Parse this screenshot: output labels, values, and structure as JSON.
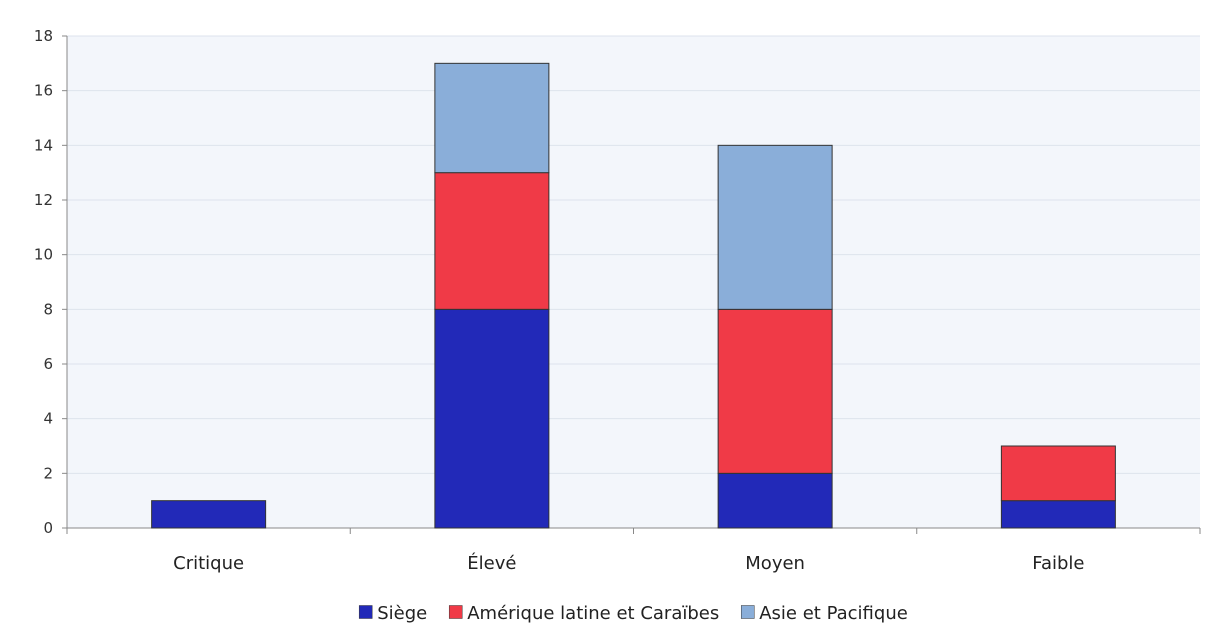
{
  "chart_data": {
    "type": "bar",
    "stacked": true,
    "categories": [
      "Critique",
      "Élevé",
      "Moyen",
      "Faible"
    ],
    "series": [
      {
        "name": "Siège",
        "values": [
          1,
          8,
          2,
          1
        ],
        "color": "#2229b8"
      },
      {
        "name": "Amérique latine et Caraïbes",
        "values": [
          0,
          5,
          6,
          2
        ],
        "color": "#f03a47"
      },
      {
        "name": "Asie et Pacifique",
        "values": [
          0,
          4,
          6,
          0
        ],
        "color": "#8aaed9"
      }
    ],
    "ylim": [
      0,
      18
    ],
    "yticks": [
      0,
      2,
      4,
      6,
      8,
      10,
      12,
      14,
      16,
      18
    ],
    "title": "",
    "xlabel": "",
    "ylabel": "",
    "grid": true,
    "legend_position": "bottom",
    "colors": {
      "plot_background": "#f3f6fb",
      "grid": "#dde3ec",
      "axis": "#888888",
      "bar_outline": "#333333"
    }
  }
}
